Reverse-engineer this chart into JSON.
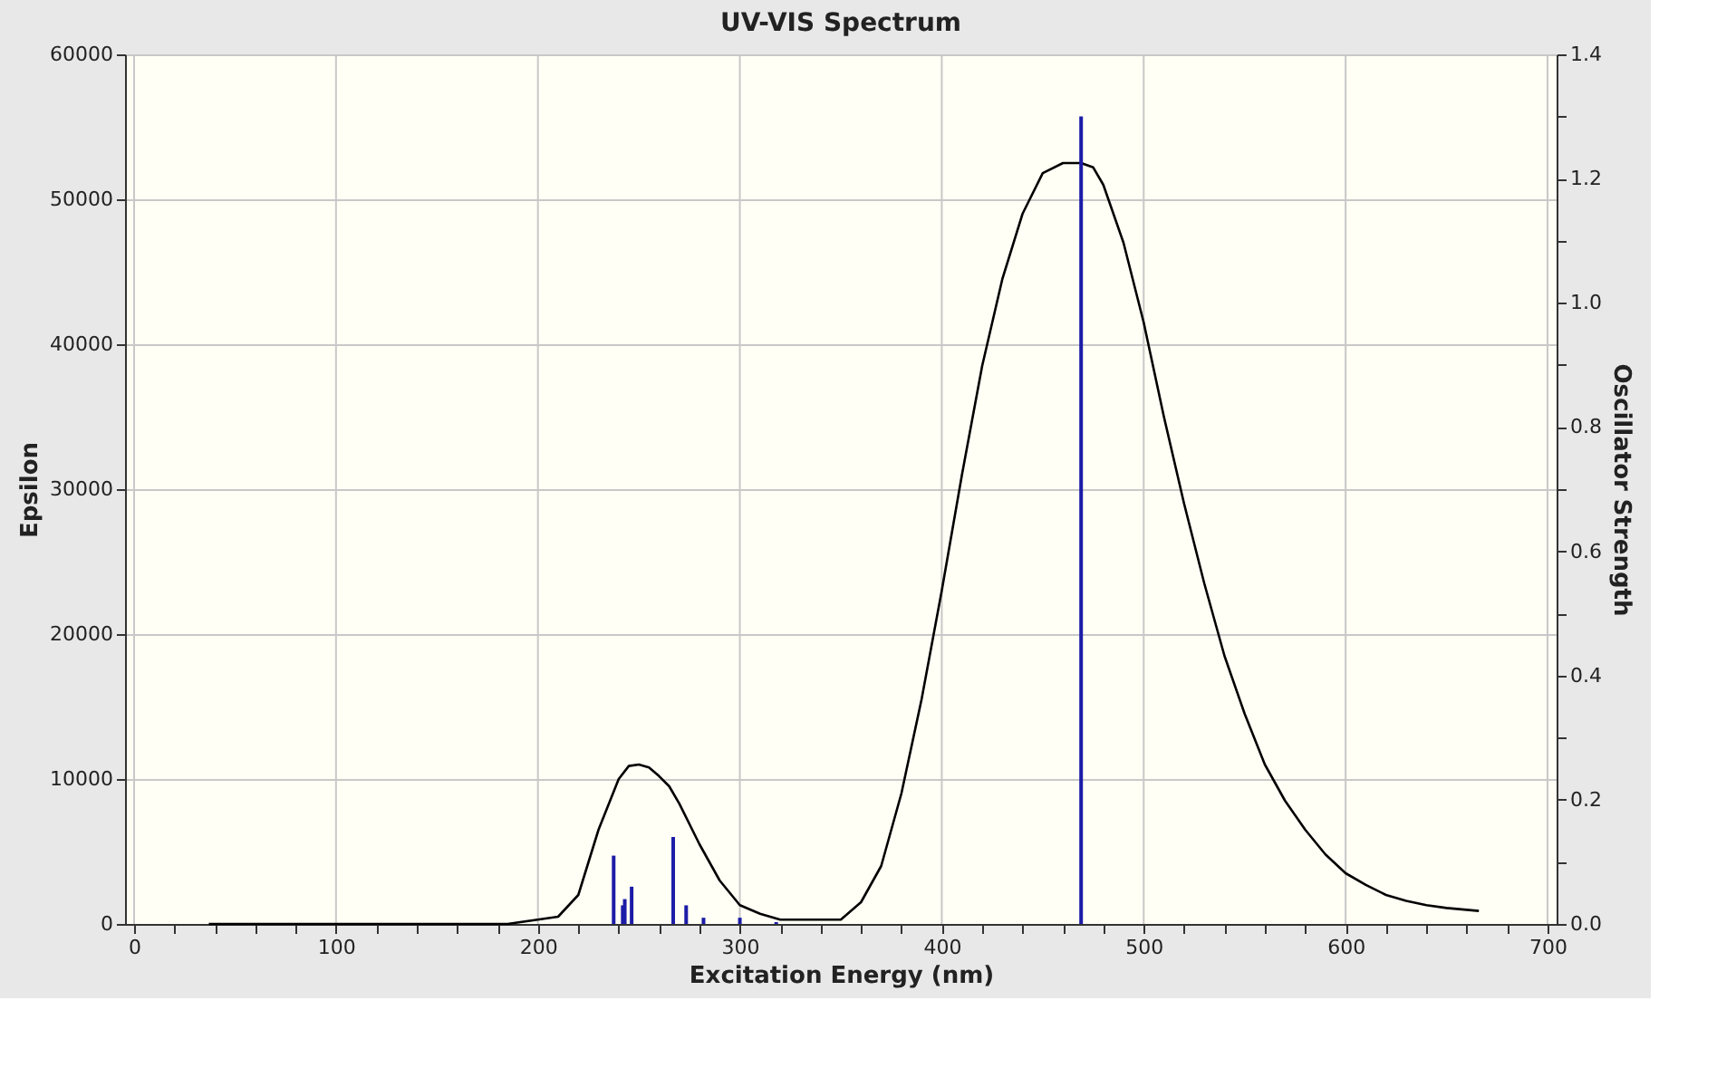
{
  "chart_data": {
    "type": "line",
    "title": "UV-VIS Spectrum",
    "xlabel": "Excitation Energy (nm)",
    "ylabel": "Epsilon",
    "y2label": "Oscillator Strength",
    "xlim": [
      0,
      700
    ],
    "xticks": [
      0,
      {
        "value": 20,
        "label": null
      },
      {
        "value": 40,
        "label": null
      },
      {
        "value": 60,
        "label": null
      },
      {
        "value": 80,
        "label": null
      },
      100,
      {
        "value": 120,
        "label": null
      },
      {
        "value": 140,
        "label": null
      },
      {
        "value": 160,
        "label": null
      },
      {
        "value": 180,
        "label": null
      },
      200,
      {
        "value": 220,
        "label": null
      },
      {
        "value": 240,
        "label": null
      },
      {
        "value": 260,
        "label": null
      },
      {
        "value": 280,
        "label": null
      },
      300,
      {
        "value": 320,
        "label": null
      },
      {
        "value": 340,
        "label": null
      },
      {
        "value": 360,
        "label": null
      },
      {
        "value": 380,
        "label": null
      },
      400,
      {
        "value": 420,
        "label": null
      },
      {
        "value": 440,
        "label": null
      },
      {
        "value": 460,
        "label": null
      },
      {
        "value": 480,
        "label": null
      },
      500,
      {
        "value": 520,
        "label": null
      },
      {
        "value": 540,
        "label": null
      },
      {
        "value": 560,
        "label": null
      },
      {
        "value": 580,
        "label": null
      },
      600,
      {
        "value": 620,
        "label": null
      },
      {
        "value": 640,
        "label": null
      },
      {
        "value": 660,
        "label": null
      },
      {
        "value": 680,
        "label": null
      },
      700
    ],
    "ylim": [
      0,
      60000
    ],
    "yticks": [
      0,
      10000,
      20000,
      30000,
      40000,
      50000,
      60000
    ],
    "y2lim": [
      0,
      1.4
    ],
    "y2ticks": [
      {
        "value": 0,
        "label": "0.0"
      },
      {
        "value": 0.1,
        "label": null
      },
      0.2,
      {
        "value": 0.3,
        "label": null
      },
      0.4,
      {
        "value": 0.5,
        "label": null
      },
      0.6,
      {
        "value": 0.7,
        "label": null
      },
      0.8,
      {
        "value": 0.9,
        "label": null
      },
      {
        "value": 1,
        "label": "1.0"
      },
      {
        "value": 1.1,
        "label": null
      },
      1.2,
      {
        "value": 1.3,
        "label": null
      },
      1.4
    ],
    "grid": true,
    "marker": "none",
    "line_style": "solid",
    "series": [
      {
        "color": "#000000",
        "x": [
          37,
          100,
          185,
          210,
          220,
          230,
          240,
          245,
          250,
          255,
          260,
          265,
          270,
          280,
          290,
          300,
          310,
          320,
          330,
          350,
          360,
          370,
          380,
          390,
          400,
          410,
          420,
          430,
          440,
          450,
          460,
          469,
          475,
          480,
          490,
          500,
          510,
          520,
          530,
          540,
          550,
          560,
          570,
          580,
          590,
          600,
          610,
          620,
          630,
          640,
          650,
          666
        ],
        "values": [
          0,
          0,
          0,
          500,
          2000,
          6500,
          10000,
          10900,
          11000,
          10800,
          10200,
          9500,
          8300,
          5500,
          3000,
          1300,
          700,
          300,
          300,
          300,
          1500,
          4000,
          9000,
          15500,
          23000,
          31000,
          38500,
          44500,
          49000,
          51800,
          52500,
          52500,
          52200,
          51000,
          47000,
          41500,
          35000,
          29000,
          23500,
          18500,
          14500,
          11000,
          8500,
          6500,
          4800,
          3500,
          2700,
          2000,
          1600,
          1300,
          1100,
          900
        ]
      },
      {
        "type": "bar",
        "axis": "y2",
        "color": "#1c1ca8",
        "x": [
          237.5,
          242,
          243,
          246.4,
          267,
          273.4,
          282,
          300,
          318,
          469
        ],
        "values": [
          0.11,
          0.03,
          0.04,
          0.06,
          0.14,
          0.03,
          0.01,
          0.01,
          0.003,
          1.3
        ]
      }
    ]
  }
}
